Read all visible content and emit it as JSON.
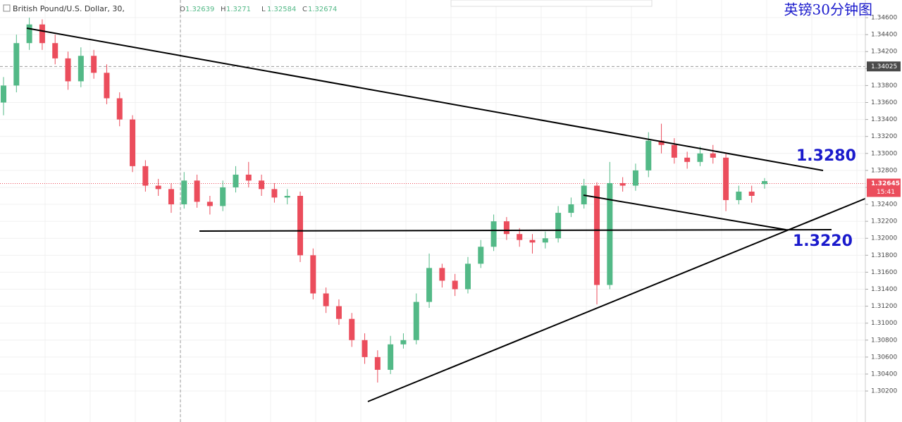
{
  "chart_data": {
    "type": "candlestick",
    "title": "英镑30分钟图",
    "symbol": "British Pound/U.S. Dollar, 30,",
    "ohlc": [
      {
        "label": "O",
        "value": 1.32639
      },
      {
        "label": "H",
        "value": 1.3271
      },
      {
        "label": "L",
        "value": 1.32584
      },
      {
        "label": "C",
        "value": 1.32674
      }
    ],
    "annotations": [
      "1.3280",
      "1.3220"
    ],
    "crosshair_price": 1.34025,
    "last_price": 1.32645,
    "countdown": "15:41",
    "up_color": "#53b987",
    "down_color": "#eb4d5c",
    "ylim": [
      1.29835,
      1.34808
    ],
    "yticks": [
      {
        "value": 1.346,
        "label": "1.34600"
      },
      {
        "value": 1.344,
        "label": "1.34400"
      },
      {
        "value": 1.342,
        "label": "1.34200"
      },
      {
        "value": 1.34,
        "label": "1.34000"
      },
      {
        "value": 1.338,
        "label": "1.33800"
      },
      {
        "value": 1.336,
        "label": "1.33600"
      },
      {
        "value": 1.334,
        "label": "1.33400"
      },
      {
        "value": 1.332,
        "label": "1.33200"
      },
      {
        "value": 1.33,
        "label": "1.33000"
      },
      {
        "value": 1.328,
        "label": "1.32800"
      },
      {
        "value": 1.326,
        "label": "1.32600"
      },
      {
        "value": 1.324,
        "label": "1.32400"
      },
      {
        "value": 1.322,
        "label": "1.32200"
      },
      {
        "value": 1.32,
        "label": "1.32000"
      },
      {
        "value": 1.318,
        "label": "1.31800"
      },
      {
        "value": 1.316,
        "label": "1.31600"
      },
      {
        "value": 1.314,
        "label": "1.31400"
      },
      {
        "value": 1.312,
        "label": "1.31200"
      },
      {
        "value": 1.31,
        "label": "1.31000"
      },
      {
        "value": 1.308,
        "label": "1.30800"
      },
      {
        "value": 1.306,
        "label": "1.30600"
      },
      {
        "value": 1.304,
        "label": "1.30400"
      },
      {
        "value": 1.302,
        "label": "1.30200"
      }
    ],
    "grid": true,
    "open": [
      1.336,
      1.338,
      1.343,
      1.3452,
      1.343,
      1.3412,
      1.3385,
      1.3415,
      1.3395,
      1.3365,
      1.334,
      1.3285,
      1.3262,
      1.3258,
      1.324,
      1.3268,
      1.3243,
      1.3238,
      1.326,
      1.3275,
      1.3268,
      1.3258,
      1.3248,
      1.325,
      1.318,
      1.3135,
      1.312,
      1.3105,
      1.308,
      1.306,
      1.3045,
      1.3075,
      1.308,
      1.3125,
      1.3165,
      1.315,
      1.314,
      1.317,
      1.319,
      1.322,
      1.3205,
      1.3198,
      1.3195,
      1.32,
      1.323,
      1.324,
      1.3262,
      1.3145,
      1.3265,
      1.3262,
      1.328,
      1.3315,
      1.331,
      1.3295,
      1.329,
      1.33,
      1.3295,
      1.3245,
      1.3255,
      1.32639
    ],
    "high": [
      1.339,
      1.344,
      1.346,
      1.3458,
      1.344,
      1.342,
      1.3425,
      1.3422,
      1.3405,
      1.3372,
      1.3345,
      1.3292,
      1.327,
      1.3265,
      1.3278,
      1.3275,
      1.325,
      1.3268,
      1.3285,
      1.329,
      1.3275,
      1.3265,
      1.3258,
      1.3255,
      1.3188,
      1.3142,
      1.3128,
      1.3112,
      1.3088,
      1.3068,
      1.3085,
      1.3088,
      1.3135,
      1.3182,
      1.317,
      1.3158,
      1.3178,
      1.3198,
      1.3228,
      1.3225,
      1.3212,
      1.3205,
      1.3208,
      1.3238,
      1.3248,
      1.327,
      1.3266,
      1.329,
      1.3272,
      1.3288,
      1.3325,
      1.3335,
      1.3318,
      1.3302,
      1.3308,
      1.331,
      1.33,
      1.3262,
      1.3262,
      1.3271
    ],
    "low": [
      1.3345,
      1.3372,
      1.3422,
      1.3422,
      1.3405,
      1.3375,
      1.3378,
      1.3388,
      1.3358,
      1.3332,
      1.3278,
      1.3255,
      1.325,
      1.323,
      1.3235,
      1.3236,
      1.3228,
      1.3232,
      1.3254,
      1.326,
      1.325,
      1.3242,
      1.324,
      1.3172,
      1.3128,
      1.3112,
      1.3098,
      1.3072,
      1.3052,
      1.303,
      1.304,
      1.307,
      1.3075,
      1.3118,
      1.3142,
      1.3132,
      1.3135,
      1.3165,
      1.3185,
      1.3198,
      1.319,
      1.3182,
      1.3188,
      1.3195,
      1.3225,
      1.3235,
      1.3122,
      1.314,
      1.3255,
      1.3256,
      1.3272,
      1.33,
      1.3288,
      1.3282,
      1.3285,
      1.3288,
      1.3232,
      1.324,
      1.3242,
      1.32584
    ],
    "close": [
      1.338,
      1.343,
      1.3452,
      1.343,
      1.3412,
      1.3385,
      1.3415,
      1.3395,
      1.3365,
      1.334,
      1.3285,
      1.3262,
      1.3258,
      1.324,
      1.3268,
      1.3243,
      1.3238,
      1.326,
      1.3275,
      1.3268,
      1.3258,
      1.3248,
      1.325,
      1.318,
      1.3135,
      1.312,
      1.3105,
      1.308,
      1.306,
      1.3045,
      1.3075,
      1.308,
      1.3125,
      1.3165,
      1.315,
      1.314,
      1.317,
      1.319,
      1.322,
      1.3205,
      1.3198,
      1.3195,
      1.32,
      1.323,
      1.324,
      1.3262,
      1.3145,
      1.3265,
      1.3262,
      1.328,
      1.3315,
      1.331,
      1.3295,
      1.329,
      1.33,
      1.3295,
      1.3245,
      1.3255,
      1.325,
      1.32674
    ]
  }
}
